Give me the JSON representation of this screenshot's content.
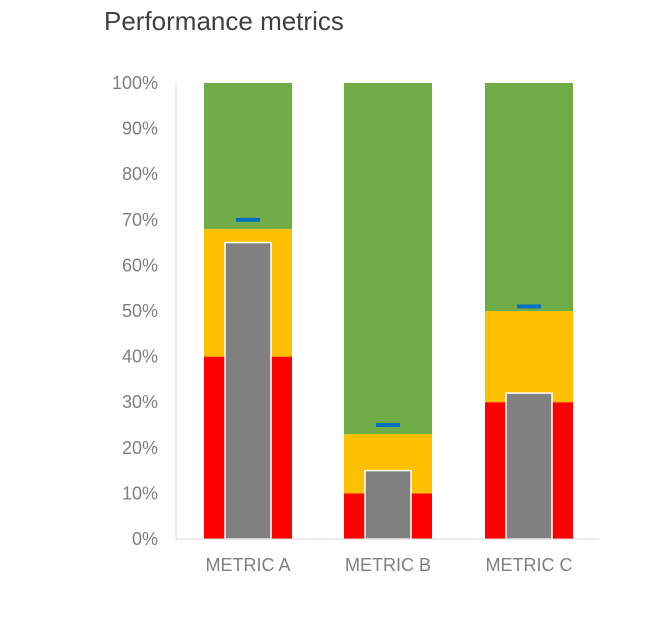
{
  "chart_data": {
    "type": "bar",
    "subtype": "bullet",
    "title": "Performance metrics",
    "xlabel": "",
    "ylabel": "",
    "ylim": [
      0,
      100
    ],
    "y_ticks": [
      "0%",
      "10%",
      "20%",
      "30%",
      "40%",
      "50%",
      "60%",
      "70%",
      "80%",
      "90%",
      "100%"
    ],
    "y_tick_values": [
      0,
      10,
      20,
      30,
      40,
      50,
      60,
      70,
      80,
      90,
      100
    ],
    "categories": [
      "METRIC A",
      "METRIC B",
      "METRIC C"
    ],
    "bands": [
      {
        "color": "#ff0000",
        "values": [
          40,
          10,
          30
        ]
      },
      {
        "color": "#ffc000",
        "values": [
          28,
          13,
          20
        ]
      },
      {
        "color": "#70ad47",
        "values": [
          32,
          77,
          50
        ]
      }
    ],
    "actual": {
      "color": "#808080",
      "values": [
        65,
        15,
        32
      ]
    },
    "target": {
      "color": "#0070c0",
      "values": [
        70,
        25,
        51
      ]
    },
    "grid": false,
    "legend": "none"
  }
}
